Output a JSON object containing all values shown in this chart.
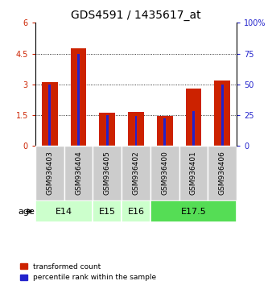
{
  "title": "GDS4591 / 1435617_at",
  "samples": [
    "GSM936403",
    "GSM936404",
    "GSM936405",
    "GSM936402",
    "GSM936400",
    "GSM936401",
    "GSM936406"
  ],
  "red_values": [
    3.1,
    4.75,
    1.62,
    1.65,
    1.45,
    2.8,
    3.2
  ],
  "blue_values_pct": [
    50,
    75,
    25,
    24,
    22,
    28,
    50
  ],
  "age_groups": [
    {
      "label": "E14",
      "start": 0,
      "end": 2,
      "color": "#ccffcc"
    },
    {
      "label": "E15",
      "start": 2,
      "end": 3,
      "color": "#ccffcc"
    },
    {
      "label": "E16",
      "start": 3,
      "end": 4,
      "color": "#ccffcc"
    },
    {
      "label": "E17.5",
      "start": 4,
      "end": 7,
      "color": "#55dd55"
    }
  ],
  "ylim_left": [
    0,
    6
  ],
  "ylim_right": [
    0,
    100
  ],
  "yticks_left": [
    0,
    1.5,
    3.0,
    4.5,
    6
  ],
  "yticks_right": [
    0,
    25,
    50,
    75,
    100
  ],
  "bar_width": 0.55,
  "blue_bar_width": 0.08,
  "red_color": "#cc2200",
  "blue_color": "#2222cc",
  "bg_color": "#ffffff",
  "sample_bg_color": "#cccccc",
  "age_label": "age",
  "legend_red": "transformed count",
  "legend_blue": "percentile rank within the sample",
  "title_fontsize": 10,
  "tick_fontsize": 7,
  "sample_fontsize": 6.5,
  "label_fontsize": 8,
  "grid_color": "#000000",
  "grid_lw": 0.6,
  "grid_style": ":"
}
